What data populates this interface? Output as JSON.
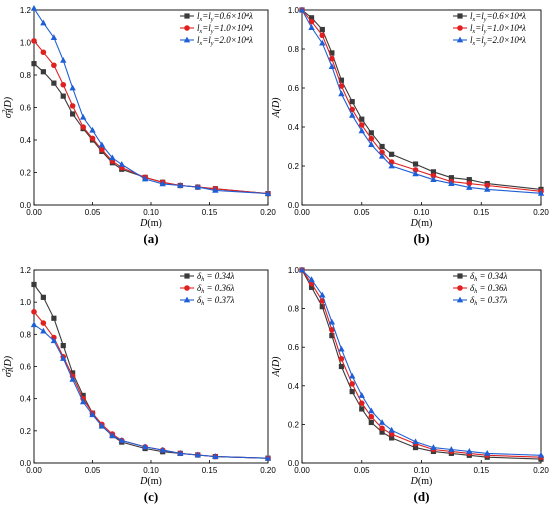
{
  "chart_data": [
    {
      "type": "line",
      "panel_label": "(a)",
      "xlabel": "D(m)",
      "ylabel": "σ_I²(D)",
      "xlim": [
        0,
        0.2
      ],
      "ylim": [
        0,
        1.2
      ],
      "xticks": [
        "0.00",
        "0.05",
        "0.10",
        "0.15",
        "0.20"
      ],
      "yticks": [
        "0.0",
        "0.2",
        "0.4",
        "0.6",
        "0.8",
        "1.0",
        "1.2"
      ],
      "legend_position": "top-right",
      "x": [
        0,
        0.008,
        0.017,
        0.025,
        0.033,
        0.042,
        0.05,
        0.058,
        0.067,
        0.075,
        0.095,
        0.11,
        0.125,
        0.14,
        0.155,
        0.2
      ],
      "series": [
        {
          "name": "lx=ly=0.6×10⁴λ",
          "color": "#3a3a3a",
          "marker": "square",
          "values": [
            0.87,
            0.82,
            0.75,
            0.67,
            0.56,
            0.47,
            0.4,
            0.33,
            0.26,
            0.22,
            0.17,
            0.14,
            0.12,
            0.11,
            0.1,
            0.07
          ]
        },
        {
          "name": "lx=ly=1.0×10⁴λ",
          "color": "#e02020",
          "marker": "circle",
          "values": [
            1.01,
            0.94,
            0.86,
            0.74,
            0.61,
            0.48,
            0.41,
            0.34,
            0.27,
            0.23,
            0.17,
            0.14,
            0.12,
            0.11,
            0.1,
            0.07
          ]
        },
        {
          "name": "lx=ly=2.0×10⁴λ",
          "color": "#1f5fd6",
          "marker": "triangle",
          "values": [
            1.21,
            1.12,
            1.03,
            0.89,
            0.72,
            0.54,
            0.46,
            0.37,
            0.29,
            0.25,
            0.16,
            0.13,
            0.12,
            0.11,
            0.09,
            0.07
          ]
        }
      ]
    },
    {
      "type": "line",
      "panel_label": "(b)",
      "xlabel": "D(m)",
      "ylabel": "A(D)",
      "xlim": [
        0,
        0.2
      ],
      "ylim": [
        0,
        1.0
      ],
      "xticks": [
        "0.00",
        "0.05",
        "0.10",
        "0.15",
        "0.20"
      ],
      "yticks": [
        "0.0",
        "0.2",
        "0.4",
        "0.6",
        "0.8",
        "1.0"
      ],
      "legend_position": "top-right",
      "x": [
        0,
        0.008,
        0.017,
        0.025,
        0.033,
        0.042,
        0.05,
        0.058,
        0.067,
        0.075,
        0.095,
        0.11,
        0.125,
        0.14,
        0.155,
        0.2
      ],
      "series": [
        {
          "name": "lx=ly=0.6×10⁴λ",
          "color": "#3a3a3a",
          "marker": "square",
          "values": [
            1.0,
            0.96,
            0.9,
            0.78,
            0.64,
            0.53,
            0.44,
            0.37,
            0.3,
            0.26,
            0.21,
            0.17,
            0.14,
            0.13,
            0.11,
            0.08
          ]
        },
        {
          "name": "lx=ly=1.0×10⁴λ",
          "color": "#e02020",
          "marker": "circle",
          "values": [
            1.0,
            0.94,
            0.87,
            0.75,
            0.61,
            0.49,
            0.41,
            0.34,
            0.27,
            0.22,
            0.18,
            0.15,
            0.12,
            0.11,
            0.1,
            0.07
          ]
        },
        {
          "name": "lx=ly=2.0×10⁴λ",
          "color": "#1f5fd6",
          "marker": "triangle",
          "values": [
            1.0,
            0.91,
            0.83,
            0.71,
            0.57,
            0.46,
            0.38,
            0.31,
            0.25,
            0.2,
            0.16,
            0.13,
            0.11,
            0.09,
            0.08,
            0.06
          ]
        }
      ]
    },
    {
      "type": "line",
      "panel_label": "(c)",
      "xlabel": "D(m)",
      "ylabel": "σ_I²(D)",
      "xlim": [
        0,
        0.2
      ],
      "ylim": [
        0,
        1.2
      ],
      "xticks": [
        "0.00",
        "0.05",
        "0.10",
        "0.15",
        "0.20"
      ],
      "yticks": [
        "0.0",
        "0.2",
        "0.4",
        "0.6",
        "0.8",
        "1.0",
        "1.2"
      ],
      "legend_position": "top-right",
      "x": [
        0,
        0.008,
        0.017,
        0.025,
        0.033,
        0.042,
        0.05,
        0.058,
        0.067,
        0.075,
        0.095,
        0.11,
        0.125,
        0.14,
        0.155,
        0.2
      ],
      "series": [
        {
          "name": "δh = 0.34λ",
          "color": "#3a3a3a",
          "marker": "square",
          "values": [
            1.11,
            1.03,
            0.9,
            0.73,
            0.56,
            0.42,
            0.31,
            0.23,
            0.17,
            0.13,
            0.09,
            0.07,
            0.06,
            0.05,
            0.04,
            0.03
          ]
        },
        {
          "name": "δh = 0.36λ",
          "color": "#e02020",
          "marker": "circle",
          "values": [
            0.94,
            0.87,
            0.78,
            0.66,
            0.54,
            0.4,
            0.31,
            0.24,
            0.18,
            0.14,
            0.1,
            0.08,
            0.06,
            0.05,
            0.04,
            0.03
          ]
        },
        {
          "name": "δh = 0.37λ",
          "color": "#1f5fd6",
          "marker": "triangle",
          "values": [
            0.86,
            0.82,
            0.76,
            0.65,
            0.52,
            0.38,
            0.3,
            0.23,
            0.17,
            0.14,
            0.1,
            0.08,
            0.06,
            0.05,
            0.04,
            0.03
          ]
        }
      ]
    },
    {
      "type": "line",
      "panel_label": "(d)",
      "xlabel": "D(m)",
      "ylabel": "A(D)",
      "xlim": [
        0,
        0.2
      ],
      "ylim": [
        0,
        1.0
      ],
      "xticks": [
        "0.00",
        "0.05",
        "0.10",
        "0.15",
        "0.20"
      ],
      "yticks": [
        "0.0",
        "0.2",
        "0.4",
        "0.6",
        "0.8",
        "1.0"
      ],
      "legend_position": "top-right",
      "x": [
        0,
        0.008,
        0.017,
        0.025,
        0.033,
        0.042,
        0.05,
        0.058,
        0.067,
        0.075,
        0.095,
        0.11,
        0.125,
        0.14,
        0.155,
        0.2
      ],
      "series": [
        {
          "name": "δh = 0.34λ",
          "color": "#3a3a3a",
          "marker": "square",
          "values": [
            1.0,
            0.91,
            0.81,
            0.66,
            0.5,
            0.37,
            0.28,
            0.21,
            0.16,
            0.13,
            0.08,
            0.06,
            0.05,
            0.04,
            0.03,
            0.02
          ]
        },
        {
          "name": "δh = 0.36λ",
          "color": "#e02020",
          "marker": "circle",
          "values": [
            1.0,
            0.93,
            0.84,
            0.69,
            0.54,
            0.41,
            0.31,
            0.24,
            0.18,
            0.15,
            0.1,
            0.07,
            0.06,
            0.05,
            0.04,
            0.03
          ]
        },
        {
          "name": "δh = 0.37λ",
          "color": "#1f5fd6",
          "marker": "triangle",
          "values": [
            1.0,
            0.95,
            0.87,
            0.73,
            0.59,
            0.45,
            0.35,
            0.27,
            0.21,
            0.17,
            0.11,
            0.08,
            0.07,
            0.06,
            0.05,
            0.04
          ]
        }
      ]
    }
  ]
}
